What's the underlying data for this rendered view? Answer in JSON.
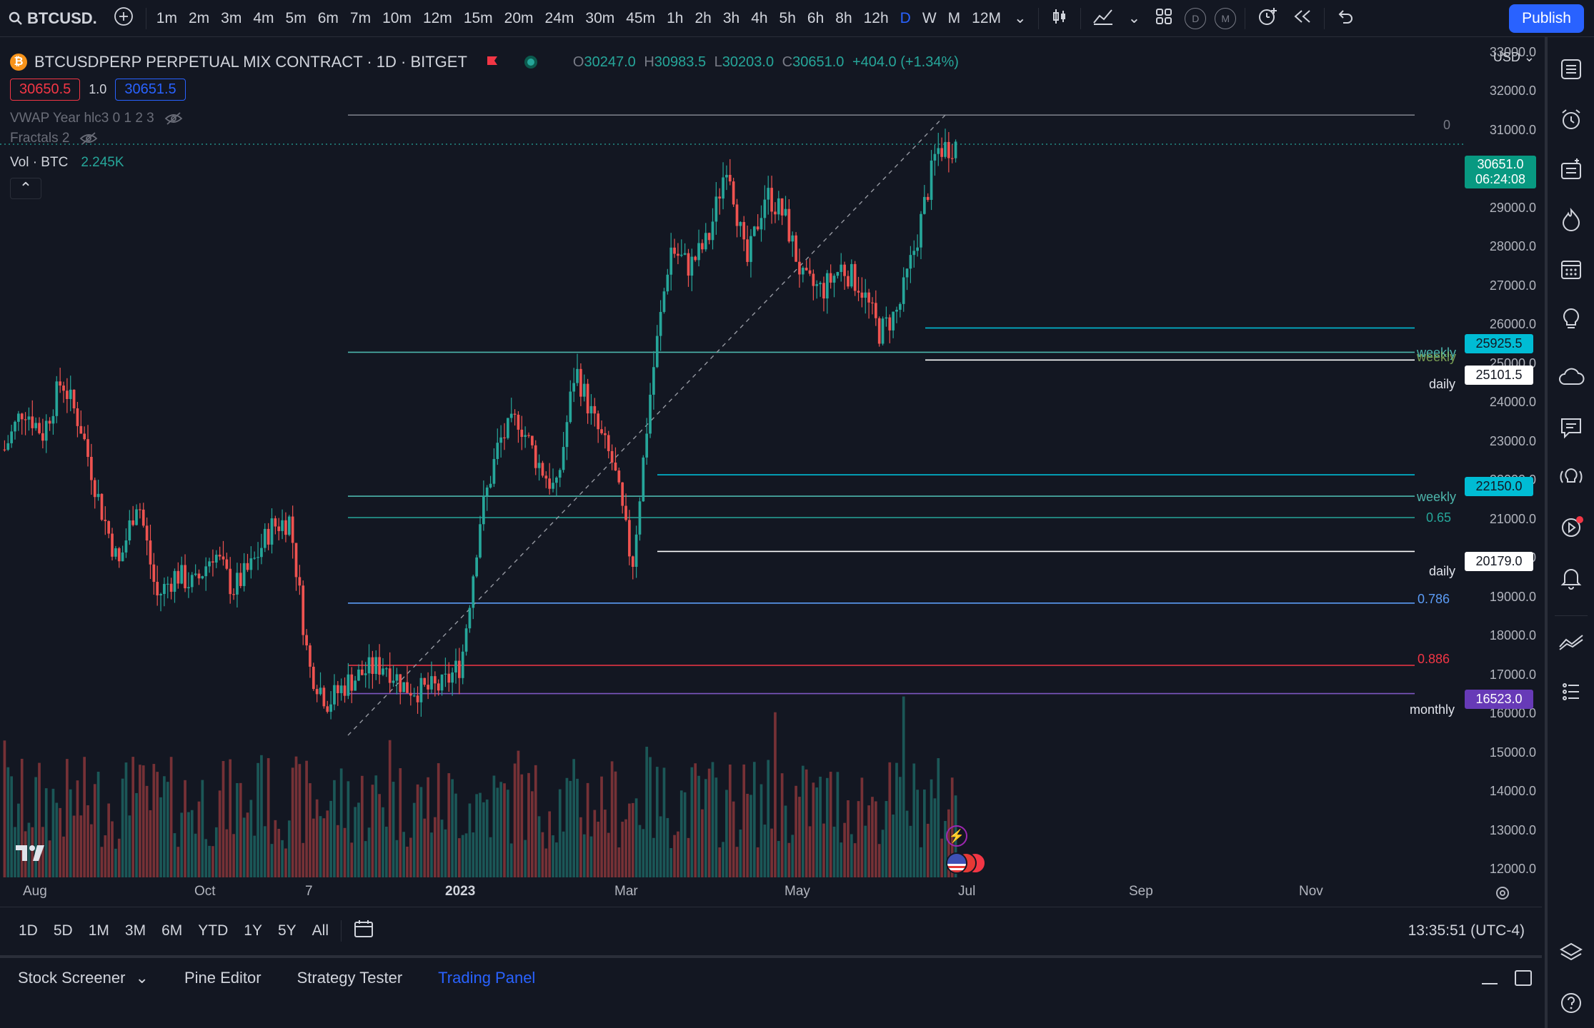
{
  "topbar": {
    "symbol": "BTCUSD.",
    "timeframes": [
      "1m",
      "2m",
      "3m",
      "4m",
      "5m",
      "6m",
      "7m",
      "10m",
      "12m",
      "15m",
      "20m",
      "24m",
      "30m",
      "45m",
      "1h",
      "2h",
      "3h",
      "4h",
      "5h",
      "6h",
      "8h",
      "12h",
      "D",
      "W",
      "M",
      "12M"
    ],
    "active_timeframe": "D",
    "round_d": "D",
    "round_m": "M",
    "publish_label": "Publish"
  },
  "legend": {
    "title": "BTCUSDPERP PERPETUAL MIX CONTRACT · 1D · BITGET",
    "btc_glyph": "₿",
    "o_label": "O",
    "o": "30247.0",
    "h_label": "H",
    "h": "30983.5",
    "l_label": "L",
    "l": "30203.0",
    "c_label": "C",
    "c": "30651.0",
    "change": "+404.0 (+1.34%)",
    "bid": "30650.5",
    "spread": "1.0",
    "ask": "30651.5",
    "indicator1": "VWAP Year hlc3 0 1 2 3",
    "indicator2": "Fractals 2",
    "vol_label": "Vol · BTC",
    "vol_value": "2.245K"
  },
  "yaxis": {
    "currency": "USD",
    "ticks": [
      "33000.0",
      "32000.0",
      "31000.0",
      "30000.0",
      "29000.0",
      "28000.0",
      "27000.0",
      "26000.0",
      "25000.0",
      "24000.0",
      "23000.0",
      "22000.0",
      "21000.0",
      "20000.0",
      "19000.0",
      "18000.0",
      "17000.0",
      "16000.0",
      "15000.0",
      "14000.0",
      "13000.0",
      "12000.0"
    ]
  },
  "price_tags": {
    "last_price": "30651.0",
    "countdown": "06:24:08",
    "weekly_high": "25925.5",
    "daily_high": "25101.5",
    "weekly_low": "22150.0",
    "daily_low": "20179.0",
    "monthly": "16523.0"
  },
  "levels": {
    "fib0": "0",
    "weekly1": "weekly",
    "weekly1b": "weekly",
    "daily1": "daily",
    "weekly2": "weekly",
    "fib065": "0.65",
    "daily2": "daily",
    "fib0786": "0.786",
    "fib0886": "0.886",
    "monthly": "monthly"
  },
  "xaxis": {
    "labels": [
      "Aug",
      "Oct",
      "7",
      "2023",
      "Mar",
      "May",
      "Jul",
      "Sep",
      "Nov"
    ]
  },
  "rangebar": {
    "ranges": [
      "1D",
      "5D",
      "1M",
      "3M",
      "6M",
      "YTD",
      "1Y",
      "5Y",
      "All"
    ],
    "clock": "13:35:51 (UTC-4)"
  },
  "bottom_tabs": {
    "stock_screener": "Stock Screener",
    "pine_editor": "Pine Editor",
    "strategy_tester": "Strategy Tester",
    "trading_panel": "Trading Panel"
  },
  "colors": {
    "background": "#131722",
    "up": "#26a69a",
    "down": "#ef5350",
    "accent": "#2962ff",
    "teal_tag": "#089981",
    "cyan_tag": "#00bcd4",
    "purple": "#673ab7"
  },
  "chart_data": {
    "type": "line",
    "ylim": [
      12000,
      33000
    ],
    "anchors": [
      [
        "Jul",
        22800
      ],
      [
        "Jul",
        23900
      ],
      [
        "Aug",
        23200
      ],
      [
        "Aug",
        24600
      ],
      [
        "Aug",
        23400
      ],
      [
        "Aug",
        21400
      ],
      [
        "Sep",
        19800
      ],
      [
        "Sep",
        21600
      ],
      [
        "Sep",
        19000
      ],
      [
        "Sep",
        19600
      ],
      [
        "Oct",
        19300
      ],
      [
        "Oct",
        20200
      ],
      [
        "Oct",
        19200
      ],
      [
        "Oct",
        19800
      ],
      [
        "Oct",
        20800
      ],
      [
        "Nov",
        21000
      ],
      [
        "Nov",
        17200
      ],
      [
        "Nov",
        16300
      ],
      [
        "Nov",
        16800
      ],
      [
        "Dec",
        17100
      ],
      [
        "Dec",
        17300
      ],
      [
        "Dec",
        16700
      ],
      [
        "Dec",
        16600
      ],
      [
        "Jan",
        16700
      ],
      [
        "Jan",
        17300
      ],
      [
        "Jan",
        21000
      ],
      [
        "Jan",
        23000
      ],
      [
        "Jan",
        23600
      ],
      [
        "Feb",
        22500
      ],
      [
        "Feb",
        21700
      ],
      [
        "Feb",
        24900
      ],
      [
        "Feb",
        23500
      ],
      [
        "Mar",
        22400
      ],
      [
        "Mar",
        19800
      ],
      [
        "Mar",
        24500
      ],
      [
        "Mar",
        28000
      ],
      [
        "Mar",
        27500
      ],
      [
        "Apr",
        28200
      ],
      [
        "Apr",
        30300
      ],
      [
        "Apr",
        27500
      ],
      [
        "Apr",
        29400
      ],
      [
        "May",
        28800
      ],
      [
        "May",
        27100
      ],
      [
        "May",
        26900
      ],
      [
        "May",
        27500
      ],
      [
        "Jun",
        27000
      ],
      [
        "Jun",
        25800
      ],
      [
        "Jun",
        26400
      ],
      [
        "Jun",
        28300
      ],
      [
        "Jun",
        30500
      ],
      [
        "Jun",
        30651
      ]
    ]
  }
}
